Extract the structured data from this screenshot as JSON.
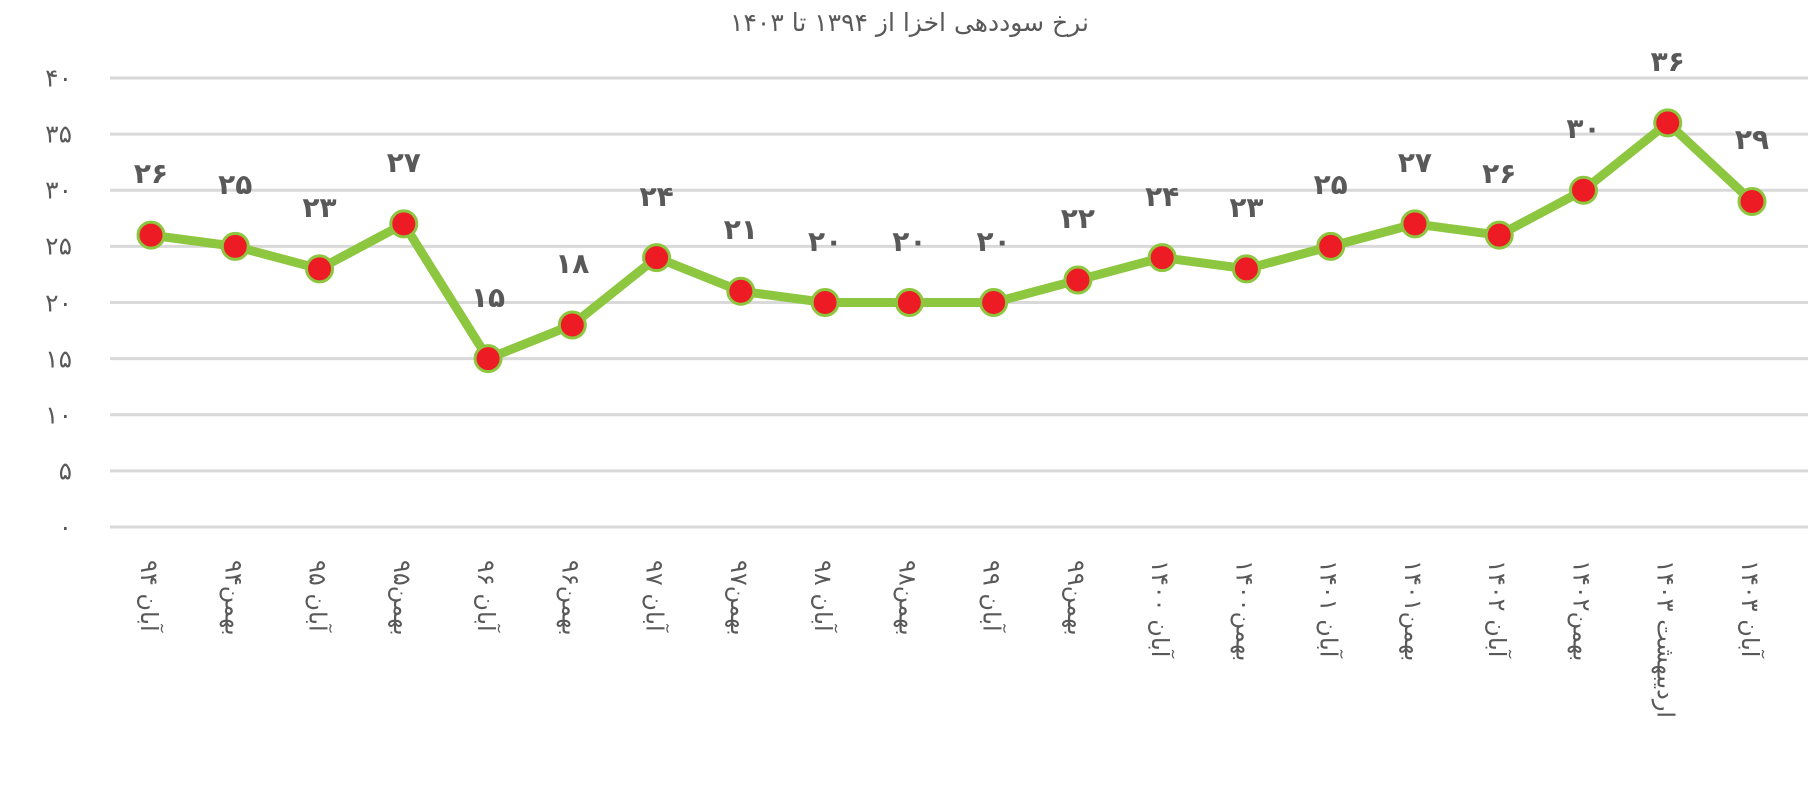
{
  "chart_data": {
    "type": "line",
    "title": "نرخ سوددهی اخزا از ۱۳۹۴ تا ۱۴۰۳",
    "xlabel": "",
    "ylabel": "",
    "ylim": [
      0,
      40
    ],
    "yticks": [
      0,
      5,
      10,
      15,
      20,
      25,
      30,
      35,
      40
    ],
    "ytick_labels": [
      "۰",
      "۵",
      "۱۰",
      "۱۵",
      "۲۰",
      "۲۵",
      "۳۰",
      "۳۵",
      "۴۰"
    ],
    "grid": true,
    "legend": "none",
    "categories": [
      "آبان ۹۴",
      "بهمن۹۴",
      "آبان ۹۵",
      "بهمن۹۵",
      "آبان ۹۶",
      "بهمن۹۶",
      "آبان ۹۷",
      "بهمن۹۷",
      "آبان ۹۸",
      "بهمن۹۸",
      "آبان ۹۹",
      "بهمن۹۹",
      "آبان ۱۴۰۰",
      "بهمن۱۴۰۰",
      "آبان ۱۴۰۱",
      "بهمن۱۴۰۱",
      "آبان ۱۴۰۲",
      "بهمن۱۴۰۲",
      "اردیبهشت ۱۴۰۳",
      "آبان ۱۴۰۳"
    ],
    "values": [
      26,
      25,
      23,
      27,
      15,
      18,
      24,
      21,
      20,
      20,
      20,
      22,
      24,
      23,
      25,
      27,
      26,
      30,
      36,
      29
    ],
    "data_labels": [
      "۲۶",
      "۲۵",
      "۲۳",
      "۲۷",
      "۱۵",
      "۱۸",
      "۲۴",
      "۲۱",
      "۲۰",
      "۲۰",
      "۲۰",
      "۲۲",
      "۲۴",
      "۲۳",
      "۲۵",
      "۲۷",
      "۲۶",
      "۳۰",
      "۳۶",
      "۲۹"
    ],
    "colors": {
      "line": "#8dc63f",
      "marker_fill": "#ed1c24",
      "marker_edge": "#8dc63f",
      "grid": "#d9d9d9",
      "text": "#595959"
    }
  }
}
